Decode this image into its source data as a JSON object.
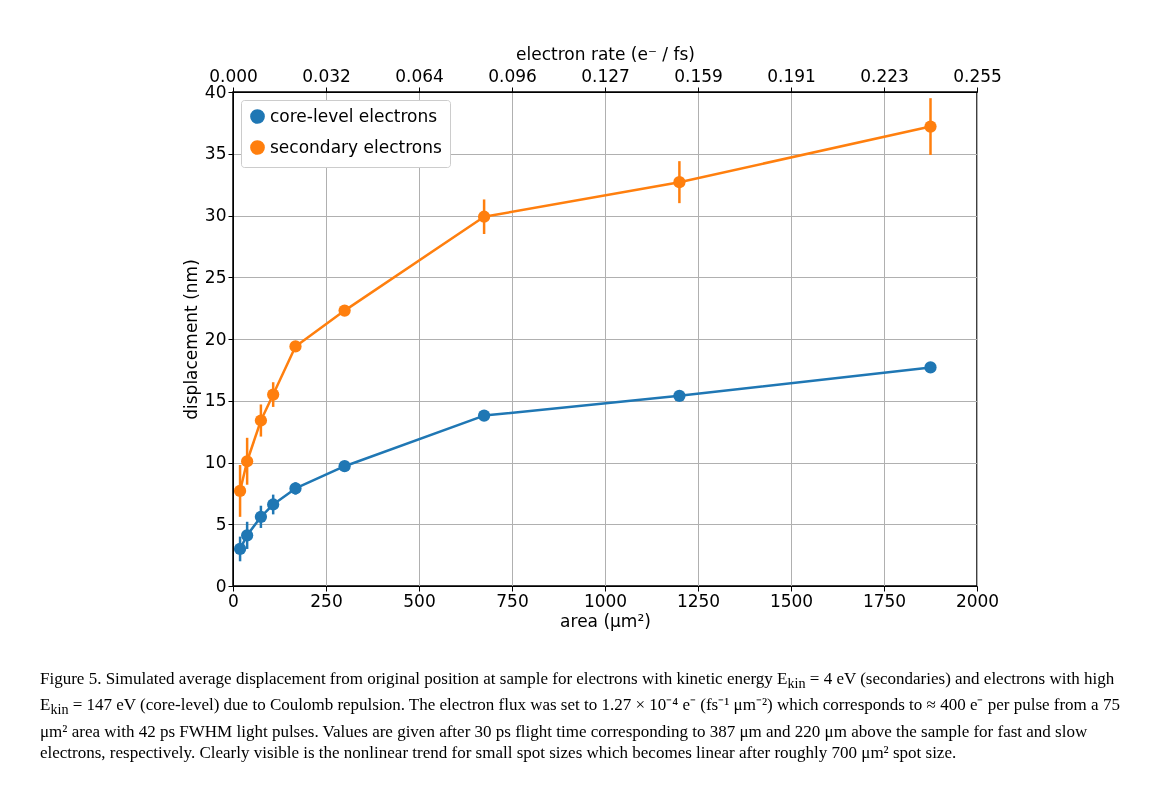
{
  "chart_data": {
    "type": "line",
    "xlabel": "area (μm²)",
    "ylabel": "displacement (nm)",
    "x2label": "electron rate (e⁻ / fs)",
    "xlim": [
      0,
      2000
    ],
    "xticks": [
      0,
      250,
      500,
      750,
      1000,
      1250,
      1500,
      1750,
      2000
    ],
    "ylim": [
      0,
      40
    ],
    "yticks": [
      0,
      5,
      10,
      15,
      20,
      25,
      30,
      35,
      40
    ],
    "x2lim": [
      0,
      0.255
    ],
    "x2ticks": [
      {
        "value": 0,
        "label": "0.000"
      },
      {
        "value": 0.031875,
        "label": "0.032"
      },
      {
        "value": 0.06375,
        "label": "0.064"
      },
      {
        "value": 0.095625,
        "label": "0.096"
      },
      {
        "value": 0.1275,
        "label": "0.127"
      },
      {
        "value": 0.159375,
        "label": "0.159"
      },
      {
        "value": 0.19125,
        "label": "0.191"
      },
      {
        "value": 0.223125,
        "label": "0.223"
      },
      {
        "value": 0.255,
        "label": "0.255"
      }
    ],
    "x": [
      19,
      38,
      75,
      108,
      168,
      300,
      675,
      1200,
      1875
    ],
    "series": [
      {
        "name": "core-level electrons",
        "color": "#1f77b4",
        "values": [
          3.0,
          4.1,
          5.6,
          6.6,
          7.9,
          9.7,
          13.8,
          15.4,
          17.7
        ],
        "errors": [
          1.0,
          1.1,
          0.9,
          0.8,
          0.5,
          0.2,
          0.2,
          0.2,
          0.4
        ]
      },
      {
        "name": "secondary electrons",
        "color": "#ff7f0e",
        "values": [
          7.7,
          10.1,
          13.4,
          15.5,
          19.4,
          22.3,
          29.9,
          32.7,
          37.2
        ],
        "errors": [
          2.1,
          1.9,
          1.3,
          1.0,
          0.3,
          0.3,
          1.4,
          1.7,
          2.3
        ]
      }
    ],
    "grid": true,
    "legend": "top left",
    "marker": "circle",
    "line_style": "solid",
    "annotations": [
      "Figure 5. Simulated average displacement from original position at sample for electrons with kinetic energy E$_{kin}$ = 4 eV (secondaries) and electrons with high E$_{kin}$ = 147 eV (core-level) due to Coulomb repulsion. The electron flux was set to 1.27 × 10⁻⁴ e⁻ (fs⁻¹ μm⁻²) which corresponds to ≈ 400 e⁻ per pulse from a 75 μm² area with 42 ps FWHM light pulses. Values are given after 30 ps flight time corresponding to 387 μm and 220 μm above the sample for fast and slow electrons, respectively. Clearly visible is the nonlinear trend for small spot sizes which becomes linear after roughly 700 μm² spot size."
    ]
  }
}
